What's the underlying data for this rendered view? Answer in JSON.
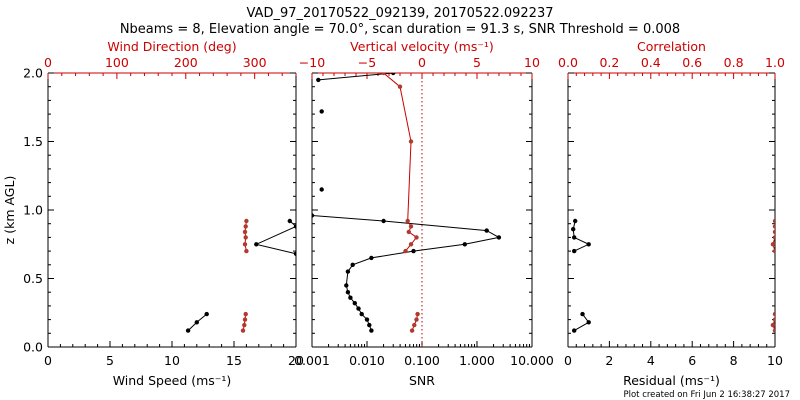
{
  "title_line1": "VAD_97_20170522_092139, 20170522.092237",
  "title_line2": "Nbeams = 8, Elevation angle = 70.0°, scan duration = 91.3 s, SNR Threshold = 0.008",
  "footer": "Plot created on Fri Jun  2 16:38:27 2017",
  "colors": {
    "black": "#000000",
    "red": "#cc0000",
    "marker_red": "#b03a2e"
  },
  "chart_data": [
    {
      "type": "line",
      "panel": "wind",
      "ylabel": "z (km AGL)",
      "ylim": [
        0,
        2.0
      ],
      "yticks": [
        0.0,
        0.5,
        1.0,
        1.5,
        2.0
      ],
      "ytick_labels": [
        "0.0",
        "0.5",
        "1.0",
        "1.5",
        "2.0"
      ],
      "xlabel_bottom": "Wind Speed (ms⁻¹)",
      "xlim_bottom": [
        0,
        20
      ],
      "xticks_bottom": [
        "0",
        "5",
        "10",
        "15",
        "20"
      ],
      "xlabel_top": "Wind Direction (deg)",
      "xlim_top": [
        0,
        360
      ],
      "xticks_top": [
        "0",
        "100",
        "200",
        "300"
      ],
      "series": [
        {
          "axis": "bottom",
          "color": "black",
          "x": [
            11.3,
            12.0,
            12.8,
            null,
            19.5,
            20.0,
            16.8,
            20.0
          ],
          "y": [
            0.12,
            0.18,
            0.24,
            null,
            0.92,
            0.88,
            0.75,
            0.68
          ]
        },
        {
          "axis": "top",
          "color": "red",
          "x": [
            283,
            285,
            286,
            287,
            null,
            288,
            286,
            287,
            286,
            287,
            288
          ],
          "y": [
            0.12,
            0.16,
            0.2,
            0.24,
            null,
            0.7,
            0.75,
            0.8,
            0.84,
            0.88,
            0.92
          ]
        }
      ]
    },
    {
      "type": "line",
      "panel": "snr",
      "ylim": [
        0,
        2.0
      ],
      "xlabel_bottom": "SNR",
      "xscale_bottom": "log",
      "xlim_bottom": [
        0.001,
        10
      ],
      "xticks_bottom": [
        "0.001",
        "0.010",
        "0.100",
        "1.000",
        "10.000"
      ],
      "xlabel_top": "Vertical velocity (ms⁻¹)",
      "xlim_top": [
        -10,
        10
      ],
      "xticks_top": [
        "−10",
        "−5",
        "0",
        "5",
        "10"
      ],
      "reference_line": {
        "axis": "top",
        "x": 0,
        "style": "dotted",
        "color": "red"
      },
      "series": [
        {
          "axis": "bottom",
          "color": "black",
          "x": [
            0.012,
            0.011,
            0.01,
            0.008,
            0.007,
            0.006,
            0.005,
            0.0045,
            0.0042,
            0.0045,
            0.0055,
            0.012,
            0.07,
            0.6,
            2.5,
            1.5,
            0.02,
            0.001,
            null,
            0.0015,
            null,
            0.0015,
            null,
            0.0013,
            0.03
          ],
          "y": [
            0.12,
            0.16,
            0.2,
            0.24,
            0.28,
            0.32,
            0.36,
            0.4,
            0.45,
            0.55,
            0.6,
            0.65,
            0.7,
            0.75,
            0.8,
            0.85,
            0.92,
            0.96,
            null,
            1.15,
            null,
            1.72,
            null,
            1.95,
            2.0
          ]
        },
        {
          "axis": "top",
          "color": "red",
          "x": [
            -0.9,
            -0.7,
            -0.5,
            -0.4,
            null,
            -1.5,
            -1.0,
            -0.5,
            -1.2,
            -1.0,
            -1.3,
            -1.0,
            -2.0,
            -3.5
          ],
          "y": [
            0.12,
            0.16,
            0.2,
            0.24,
            null,
            0.7,
            0.75,
            0.8,
            0.84,
            0.88,
            0.92,
            1.5,
            1.9,
            2.0
          ]
        }
      ]
    },
    {
      "type": "line",
      "panel": "residual",
      "ylim": [
        0,
        2.0
      ],
      "xlabel_bottom": "Residual (ms⁻¹)",
      "xlim_bottom": [
        0,
        10
      ],
      "xticks_bottom": [
        "0",
        "2",
        "4",
        "6",
        "8",
        "10"
      ],
      "xlabel_top": "Correlation",
      "xlim_top": [
        0,
        1.0
      ],
      "xticks_top": [
        "0.0",
        "0.2",
        "0.4",
        "0.6",
        "0.8",
        "1.0"
      ],
      "series": [
        {
          "axis": "bottom",
          "color": "black",
          "x": [
            0.3,
            1.0,
            0.7,
            null,
            0.3,
            1.0,
            0.3,
            0.25,
            0.35
          ],
          "y": [
            0.12,
            0.18,
            0.24,
            null,
            0.7,
            0.75,
            0.8,
            0.86,
            0.92
          ]
        },
        {
          "axis": "top",
          "color": "red",
          "x": [
            1.0,
            0.99,
            1.0,
            1.0,
            null,
            1.0,
            0.99,
            1.0,
            1.0,
            1.0,
            1.0
          ],
          "y": [
            0.12,
            0.16,
            0.2,
            0.24,
            null,
            0.7,
            0.75,
            0.8,
            0.84,
            0.88,
            0.92
          ]
        }
      ]
    }
  ]
}
